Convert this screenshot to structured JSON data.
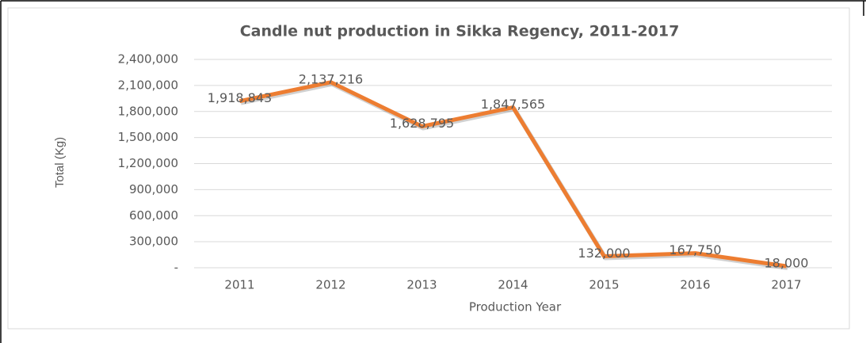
{
  "chart_data": {
    "type": "line",
    "title": "Candle nut production in Sikka Regency, 2011-2017",
    "x_label": "Production Year",
    "y_label": "Total (Kg)",
    "categories": [
      "2011",
      "2012",
      "2013",
      "2014",
      "2015",
      "2016",
      "2017"
    ],
    "series": [
      {
        "name": "Total (Kg)",
        "color": "#ed7d31",
        "values": [
          1918843,
          2137216,
          1628795,
          1847565,
          132000,
          167750,
          18000
        ],
        "value_labels": [
          "1,918,843",
          "2,137,216",
          "1,628,795",
          "1,847,565",
          "132,000",
          "167,750",
          "18,000"
        ]
      }
    ],
    "ylim": [
      0,
      2400000
    ],
    "yticks": [
      {
        "value": 0,
        "label": "-"
      },
      {
        "value": 300000,
        "label": "300,000"
      },
      {
        "value": 600000,
        "label": "600,000"
      },
      {
        "value": 900000,
        "label": "900,000"
      },
      {
        "value": 1200000,
        "label": "1,200,000"
      },
      {
        "value": 1500000,
        "label": "1,500,000"
      },
      {
        "value": 1800000,
        "label": "1,800,000"
      },
      {
        "value": 2100000,
        "label": "2,100,000"
      },
      {
        "value": 2400000,
        "label": "2,400,000"
      }
    ],
    "grid": true
  }
}
